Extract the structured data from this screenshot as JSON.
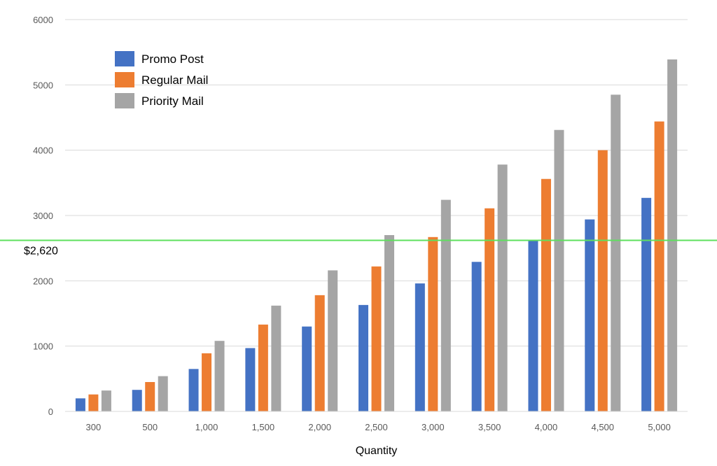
{
  "chart_data": {
    "type": "bar",
    "xlabel": "Quantity",
    "ylabel": "",
    "ylim": [
      0,
      6000
    ],
    "yticks": [
      "0",
      "1000",
      "2000",
      "3000",
      "4000",
      "5000",
      "6000"
    ],
    "grid": true,
    "legend_position": "top-left",
    "categories": [
      "300",
      "500",
      "1,000",
      "1,500",
      "2,000",
      "2,500",
      "3,000",
      "3,500",
      "4,000",
      "4,500",
      "5,000"
    ],
    "series": [
      {
        "name": "Promo Post",
        "color": "#4472c4",
        "values": [
          200,
          330,
          650,
          970,
          1300,
          1630,
          1960,
          2290,
          2620,
          2940,
          3270
        ]
      },
      {
        "name": "Regular Mail",
        "color": "#ed7d31",
        "values": [
          260,
          450,
          890,
          1330,
          1780,
          2220,
          2670,
          3110,
          3560,
          4000,
          4440
        ]
      },
      {
        "name": "Priority Mail",
        "color": "#a5a5a5",
        "values": [
          320,
          540,
          1080,
          1620,
          2160,
          2700,
          3240,
          3780,
          4310,
          4850,
          5390
        ]
      }
    ],
    "reference_line": {
      "value": 2620,
      "label": "$2,620",
      "color": "#5ee05e"
    }
  }
}
